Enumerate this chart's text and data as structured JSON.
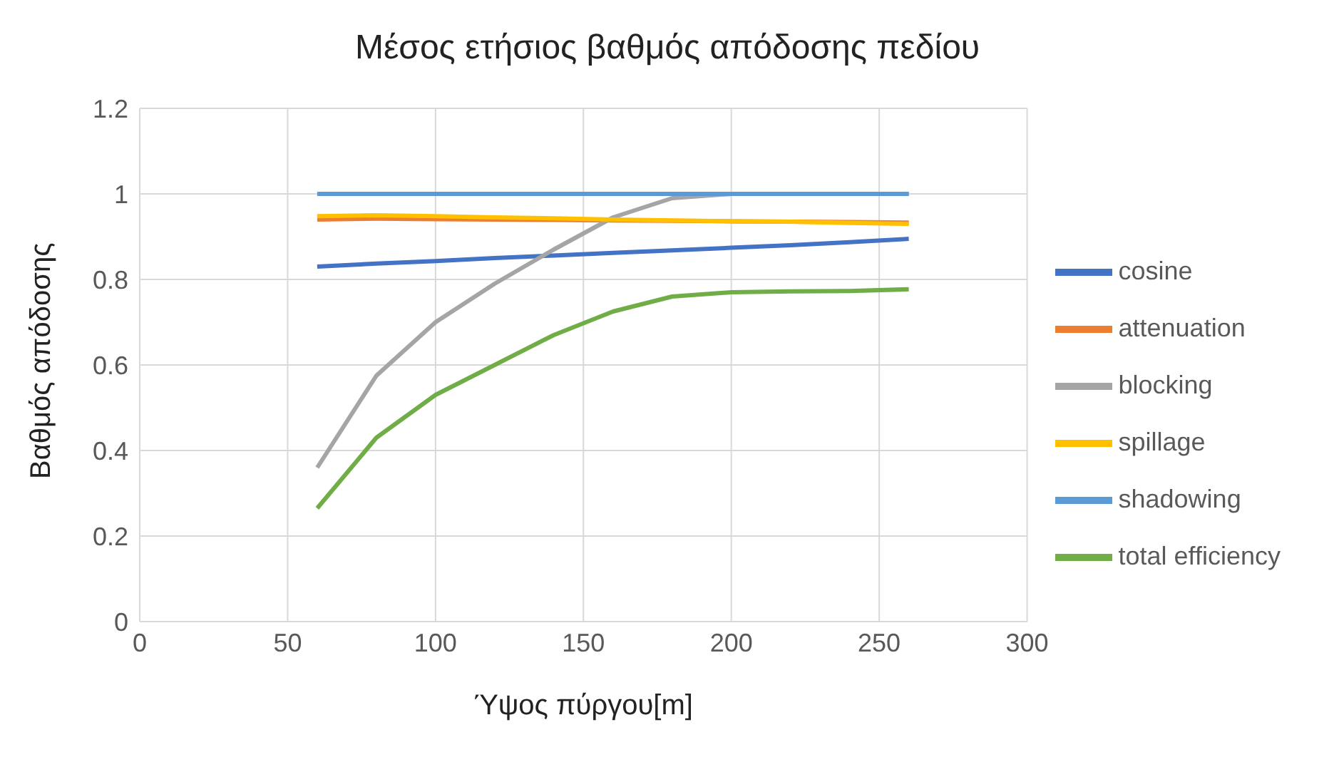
{
  "chart_data": {
    "type": "line",
    "title": "Μέσος ετήσιος βαθμός απόδοσης πεδίου",
    "xlabel": "Ύψος πύργου[m]",
    "ylabel": "Βαθμός απόδοσης",
    "x": [
      60,
      80,
      100,
      120,
      140,
      160,
      180,
      200,
      220,
      240,
      260
    ],
    "series": [
      {
        "name": "cosine",
        "color": "#4472c4",
        "values": [
          0.83,
          0.837,
          0.843,
          0.85,
          0.856,
          0.862,
          0.868,
          0.874,
          0.88,
          0.887,
          0.895
        ]
      },
      {
        "name": "attenuation",
        "color": "#ed7d31",
        "values": [
          0.94,
          0.942,
          0.941,
          0.94,
          0.939,
          0.938,
          0.937,
          0.936,
          0.935,
          0.934,
          0.933
        ]
      },
      {
        "name": "blocking",
        "color": "#a5a5a5",
        "values": [
          0.36,
          0.575,
          0.7,
          0.79,
          0.87,
          0.945,
          0.99,
          1.0,
          1.0,
          1.0,
          1.0
        ]
      },
      {
        "name": "spillage",
        "color": "#ffc000",
        "values": [
          0.948,
          0.95,
          0.948,
          0.945,
          0.943,
          0.94,
          0.938,
          0.936,
          0.935,
          0.932,
          0.93
        ]
      },
      {
        "name": "shadowing",
        "color": "#5b9bd5",
        "values": [
          1,
          1,
          1,
          1,
          1,
          1,
          1,
          1,
          1,
          1,
          1
        ]
      },
      {
        "name": "total efficiency",
        "color": "#70ad47",
        "values": [
          0.265,
          0.43,
          0.53,
          0.6,
          0.67,
          0.725,
          0.76,
          0.77,
          0.772,
          0.773,
          0.777
        ]
      }
    ],
    "xlim": [
      0,
      300
    ],
    "xticks": [
      0,
      50,
      100,
      150,
      200,
      250,
      300
    ],
    "ylim": [
      0,
      1.2
    ],
    "yticks": [
      0,
      0.2,
      0.4,
      0.6,
      0.8,
      1,
      1.2
    ],
    "grid": true,
    "legend": "right",
    "marker": "none",
    "line_style": "solid"
  }
}
